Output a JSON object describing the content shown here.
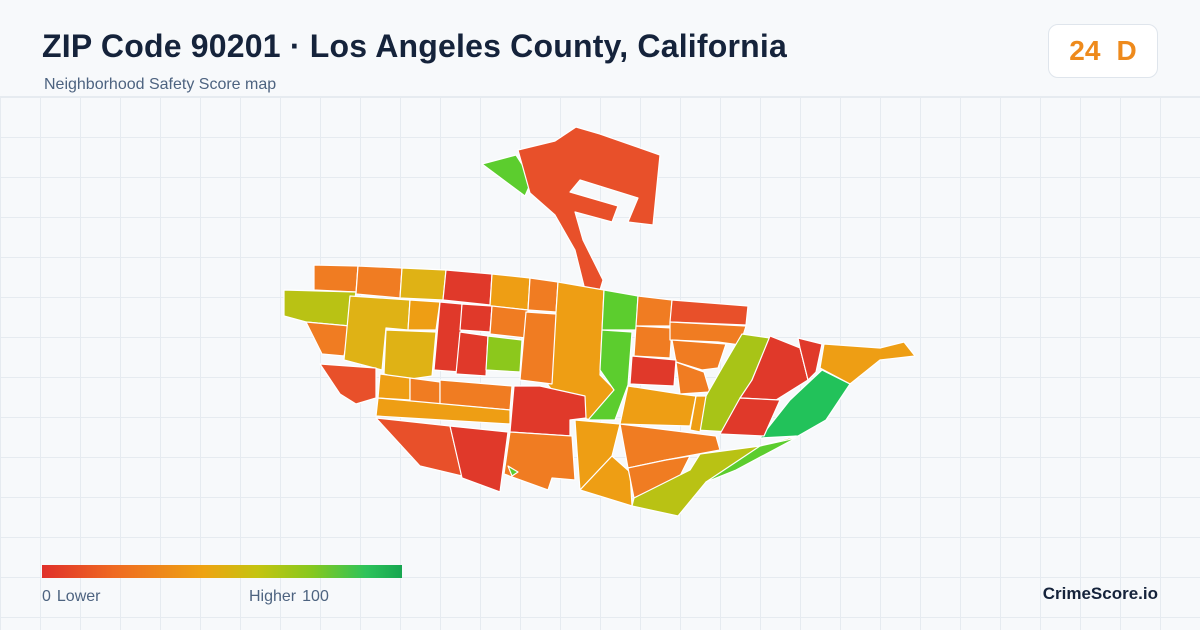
{
  "header": {
    "title": "ZIP Code 90201 · Los Angeles County, California",
    "subtitle": "Neighborhood Safety Score map"
  },
  "score": {
    "value": "24",
    "grade": "D",
    "color": "#ee8a1c"
  },
  "legend": {
    "min": "0",
    "min_label": "Lower",
    "max_label": "Higher",
    "max": "100",
    "colors": [
      "#e0302a",
      "#ef6a22",
      "#eea312",
      "#c4c410",
      "#86c81e",
      "#2dc35a",
      "#17a650"
    ]
  },
  "brand": "CrimeScore.io",
  "map": {
    "region_colors": {
      "red": "#e0392a",
      "red_orange": "#e8502a",
      "orange": "#f07c22",
      "amber": "#ee9e14",
      "gold": "#dfb215",
      "olive": "#b9c214",
      "yellow_green": "#8cc81c",
      "lime": "#5ccd2e",
      "green": "#22c25a"
    }
  }
}
